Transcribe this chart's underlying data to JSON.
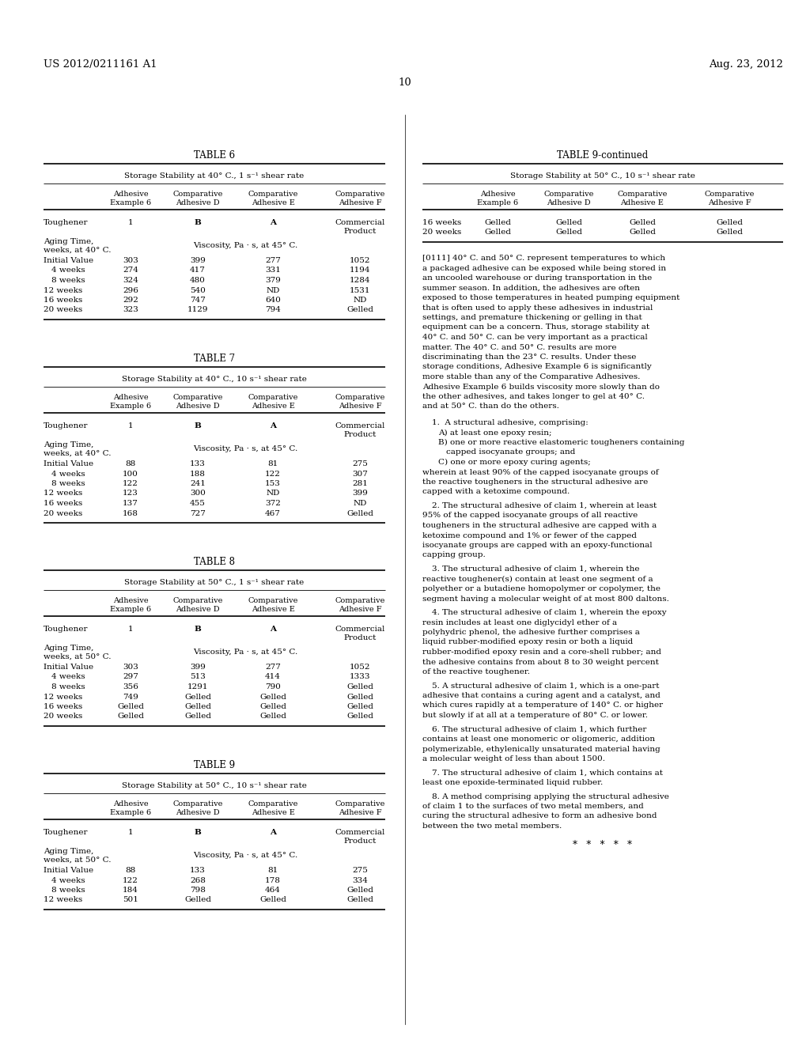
{
  "header_left": "US 2012/0211161 A1",
  "header_right": "Aug. 23, 2012",
  "page_number": "10",
  "background_color": "#ffffff",
  "table6": {
    "title": "TABLE 6",
    "subtitle": "Storage Stability at 40° C., 1 s⁻¹ shear rate",
    "col_headers": [
      "Adhesive\nExample 6",
      "Comparative\nAdhesive D",
      "Comparative\nAdhesive E",
      "Comparative\nAdhesive F"
    ],
    "row_toughener": [
      "Toughener",
      "1",
      "B",
      "A",
      "Commercial\nProduct"
    ],
    "aging_label": "Aging Time,\nweeks, at 40° C.",
    "viscosity_span": "Viscosity, Pa · s, at 45° C.",
    "rows": [
      [
        "Initial Value",
        "303",
        "399",
        "277",
        "1052"
      ],
      [
        "4 weeks",
        "274",
        "417",
        "331",
        "1194"
      ],
      [
        "8 weeks",
        "324",
        "480",
        "379",
        "1284"
      ],
      [
        "12 weeks",
        "296",
        "540",
        "ND",
        "1531"
      ],
      [
        "16 weeks",
        "292",
        "747",
        "640",
        "ND"
      ],
      [
        "20 weeks",
        "323",
        "1129",
        "794",
        "Gelled"
      ]
    ]
  },
  "table7": {
    "title": "TABLE 7",
    "subtitle": "Storage Stability at 40° C., 10 s⁻¹ shear rate",
    "col_headers": [
      "Adhesive\nExample 6",
      "Comparative\nAdhesive D",
      "Comparative\nAdhesive E",
      "Comparative\nAdhesive F"
    ],
    "row_toughener": [
      "Toughener",
      "1",
      "B",
      "A",
      "Commercial\nProduct"
    ],
    "aging_label": "Aging Time,\nweeks, at 40° C.",
    "viscosity_span": "Viscosity, Pa · s, at 45° C.",
    "rows": [
      [
        "Initial Value",
        "88",
        "133",
        "81",
        "275"
      ],
      [
        "4 weeks",
        "100",
        "188",
        "122",
        "307"
      ],
      [
        "8 weeks",
        "122",
        "241",
        "153",
        "281"
      ],
      [
        "12 weeks",
        "123",
        "300",
        "ND",
        "399"
      ],
      [
        "16 weeks",
        "137",
        "455",
        "372",
        "ND"
      ],
      [
        "20 weeks",
        "168",
        "727",
        "467",
        "Gelled"
      ]
    ]
  },
  "table8": {
    "title": "TABLE 8",
    "subtitle": "Storage Stability at 50° C., 1 s⁻¹ shear rate",
    "col_headers": [
      "Adhesive\nExample 6",
      "Comparative\nAdhesive D",
      "Comparative\nAdhesive E",
      "Comparative\nAdhesive F"
    ],
    "row_toughener": [
      "Toughener",
      "1",
      "B",
      "A",
      "Commercial\nProduct"
    ],
    "aging_label": "Aging Time,\nweeks, at 50° C.",
    "viscosity_span": "Viscosity, Pa · s, at 45° C.",
    "rows": [
      [
        "Initial Value",
        "303",
        "399",
        "277",
        "1052"
      ],
      [
        "4 weeks",
        "297",
        "513",
        "414",
        "1333"
      ],
      [
        "8 weeks",
        "356",
        "1291",
        "790",
        "Gelled"
      ],
      [
        "12 weeks",
        "749",
        "Gelled",
        "Gelled",
        "Gelled"
      ],
      [
        "16 weeks",
        "Gelled",
        "Gelled",
        "Gelled",
        "Gelled"
      ],
      [
        "20 weeks",
        "Gelled",
        "Gelled",
        "Gelled",
        "Gelled"
      ]
    ]
  },
  "table9": {
    "title": "TABLE 9",
    "subtitle": "Storage Stability at 50° C., 10 s⁻¹ shear rate",
    "col_headers": [
      "Adhesive\nExample 6",
      "Comparative\nAdhesive D",
      "Comparative\nAdhesive E",
      "Comparative\nAdhesive F"
    ],
    "row_toughener": [
      "Toughener",
      "1",
      "B",
      "A",
      "Commercial\nProduct"
    ],
    "aging_label": "Aging Time,\nweeks, at 50° C.",
    "viscosity_span": "Viscosity, Pa · s, at 45° C.",
    "rows": [
      [
        "Initial Value",
        "88",
        "133",
        "81",
        "275"
      ],
      [
        "4 weeks",
        "122",
        "268",
        "178",
        "334"
      ],
      [
        "8 weeks",
        "184",
        "798",
        "464",
        "Gelled"
      ],
      [
        "12 weeks",
        "501",
        "Gelled",
        "Gelled",
        "Gelled"
      ]
    ]
  },
  "table9c": {
    "title": "TABLE 9-continued",
    "subtitle": "Storage Stability at 50° C., 10 s⁻¹ shear rate",
    "col_headers": [
      "Adhesive\nExample 6",
      "Comparative\nAdhesive D",
      "Comparative\nAdhesive E",
      "Comparative\nAdhesive F"
    ],
    "rows": [
      [
        "16 weeks",
        "Gelled",
        "Gelled",
        "Gelled",
        "Gelled"
      ],
      [
        "20 weeks",
        "Gelled",
        "Gelled",
        "Gelled",
        "Gelled"
      ]
    ]
  },
  "para_0111": "[0111]  40° C. and 50° C. represent temperatures to which a packaged adhesive can be exposed while being stored in an uncooled warehouse or during transportation in the summer season. In addition, the adhesives are often exposed to those temperatures in heated pumping equipment that is often used to apply these adhesives in industrial settings, and premature thickening or gelling in that equipment can be a concern. Thus, storage stability at 40° C. and 50° C. can be very important as a practical matter. The 40° C. and 50° C. results are more discriminating than the 23° C. results. Under these storage conditions, Adhesive Example 6 is significantly more stable than any of the Comparative Adhesives. Adhesive Example 6 builds viscosity more slowly than do the other adhesives, and takes longer to gel at 40° C. and at 50° C. than do the others.",
  "claim1_intro": "1.  A structural adhesive, comprising:",
  "claim1_A": "A) at least one epoxy resin;",
  "claim1_B": "B) one or more reactive elastomeric tougheners containing capped isocyanate groups; and",
  "claim1_B2": "capped isocyanate groups; and",
  "claim1_C": "C) one or more epoxy curing agents;",
  "claim1_wherein": "wherein at least 90% of the capped isocyanate groups of the reactive tougheners in the structural adhesive are capped with a ketoxime compound.",
  "claim2": "2.  The structural adhesive of claim 1, wherein at least 95% of the capped isocyanate groups of all reactive tougheners in the structural adhesive are capped with a ketoxime compound and 1% or fewer of the capped isocyanate groups are capped with an epoxy-functional capping group.",
  "claim3": "3.  The structural adhesive of claim 1, wherein the reactive toughener(s) contain at least one segment of a polyether or a butadiene homopolymer or copolymer, the segment having a molecular weight of at most 800 daltons.",
  "claim4": "4.  The structural adhesive of claim 1, wherein the epoxy resin includes at least one diglycidyl ether of a polyhydric phenol, the adhesive further comprises a liquid rubber-modiﬁed epoxy resin or both a liquid rubber-modified epoxy resin and a core-shell rubber; and the adhesive contains from about 8 to 30 weight percent of the reactive toughener.",
  "claim5": "5.  A structural adhesive of claim 1, which is a one-part adhesive that contains a curing agent and a catalyst, and which cures rapidly at a temperature of 140° C. or higher but slowly if at all at a temperature of 80° C. or lower.",
  "claim6": "6.  The structural adhesive of claim 1, which further contains at least one monomeric or oligomeric, addition polymerizable, ethylenically unsaturated material having a molecular weight of less than about 1500.",
  "claim7": "7.  The structural adhesive of claim 1, which contains at least one epoxide-terminated liquid rubber.",
  "claim8": "8.  A method comprising applying the structural adhesive of claim 1 to the surfaces of two metal members, and curing the structural adhesive to form an adhesive bond between the two metal members.",
  "asterisks": "*   *   *   *   *"
}
